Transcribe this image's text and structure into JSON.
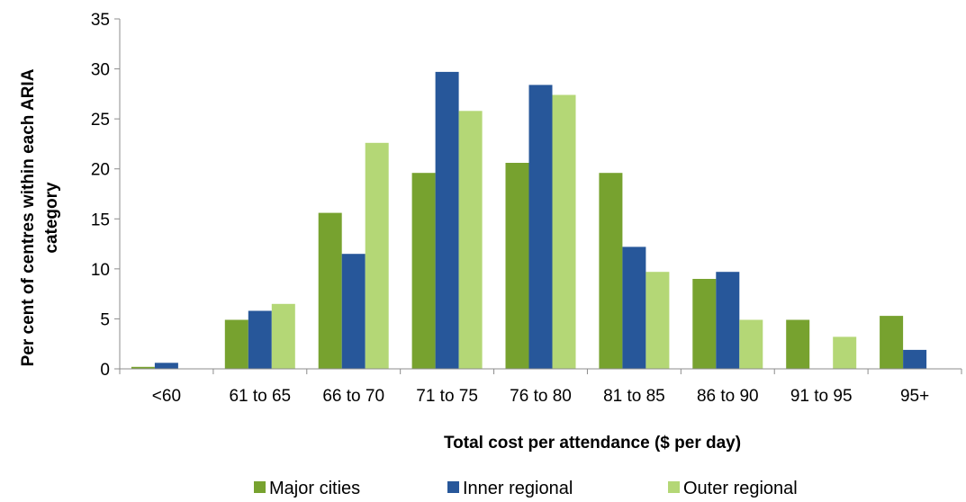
{
  "chart_data": {
    "type": "bar",
    "title": "",
    "xlabel": "Total cost per attendance ($ per day)",
    "ylabel_lines": [
      "Per cent of centres within each ARIA",
      "category"
    ],
    "ylim": [
      0,
      35
    ],
    "yticks": [
      0,
      5,
      10,
      15,
      20,
      25,
      30,
      35
    ],
    "grid": false,
    "legend_position": "bottom",
    "categories": [
      "<60",
      "61 to 65",
      "66 to 70",
      "71 to 75",
      "76 to 80",
      "81 to 85",
      "86 to 90",
      "91 to 95",
      "95+"
    ],
    "series": [
      {
        "name": "Major cities",
        "color": "#77a22f",
        "values": [
          0.2,
          4.9,
          15.6,
          19.6,
          20.6,
          19.6,
          9.0,
          4.9,
          5.3
        ]
      },
      {
        "name": "Inner regional",
        "color": "#27579a",
        "values": [
          0.6,
          5.8,
          11.5,
          29.7,
          28.4,
          12.2,
          9.7,
          0,
          1.9
        ]
      },
      {
        "name": "Outer regional",
        "color": "#b4d776",
        "values": [
          0,
          6.5,
          22.6,
          25.8,
          27.4,
          9.7,
          4.9,
          3.2,
          0
        ]
      }
    ]
  }
}
